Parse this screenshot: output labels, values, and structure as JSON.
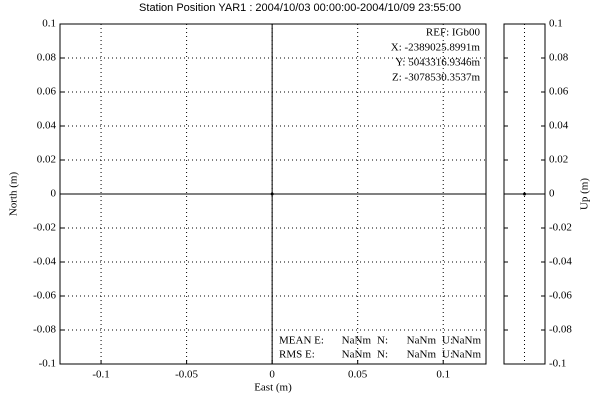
{
  "chart_data": [
    {
      "type": "scatter",
      "title": "Station Position YAR1 : 2004/10/03 00:00:00-2004/10/09 23:55:00",
      "x_label": "East (m)",
      "y_label": "North (m)",
      "x": [
        0
      ],
      "values": [
        0
      ],
      "color": "#000000",
      "xlim": [
        -0.124,
        0.125
      ],
      "xticks": [
        -0.1,
        -0.05,
        0,
        0.05,
        0.1
      ],
      "ylim": [
        -0.1,
        0.1
      ],
      "yticks": [
        -0.1,
        -0.08,
        -0.06,
        -0.04,
        -0.02,
        0,
        0.02,
        0.04,
        0.06,
        0.08,
        0.1
      ],
      "grid": true,
      "annotations": [
        "REF: IGb00",
        "X: -2389025.8991m",
        "Y: 5043316.9346m",
        "Z: -3078530.3537m"
      ],
      "stats": [
        [
          "MEAN E:",
          "NaNm",
          "N:",
          "NaNm",
          "U:",
          "NaNm"
        ],
        [
          "RMS  E:",
          "NaNm",
          "N:",
          "NaNm",
          "U:",
          "NaNm"
        ]
      ]
    },
    {
      "type": "strip",
      "y_label": "Up (m)",
      "values": [
        0
      ],
      "color": "#000000",
      "ylim": [
        -0.1,
        0.1
      ],
      "yticks": [
        -0.1,
        -0.08,
        -0.06,
        -0.04,
        -0.02,
        0,
        0.02,
        0.04,
        0.06,
        0.08,
        0.1
      ]
    }
  ]
}
